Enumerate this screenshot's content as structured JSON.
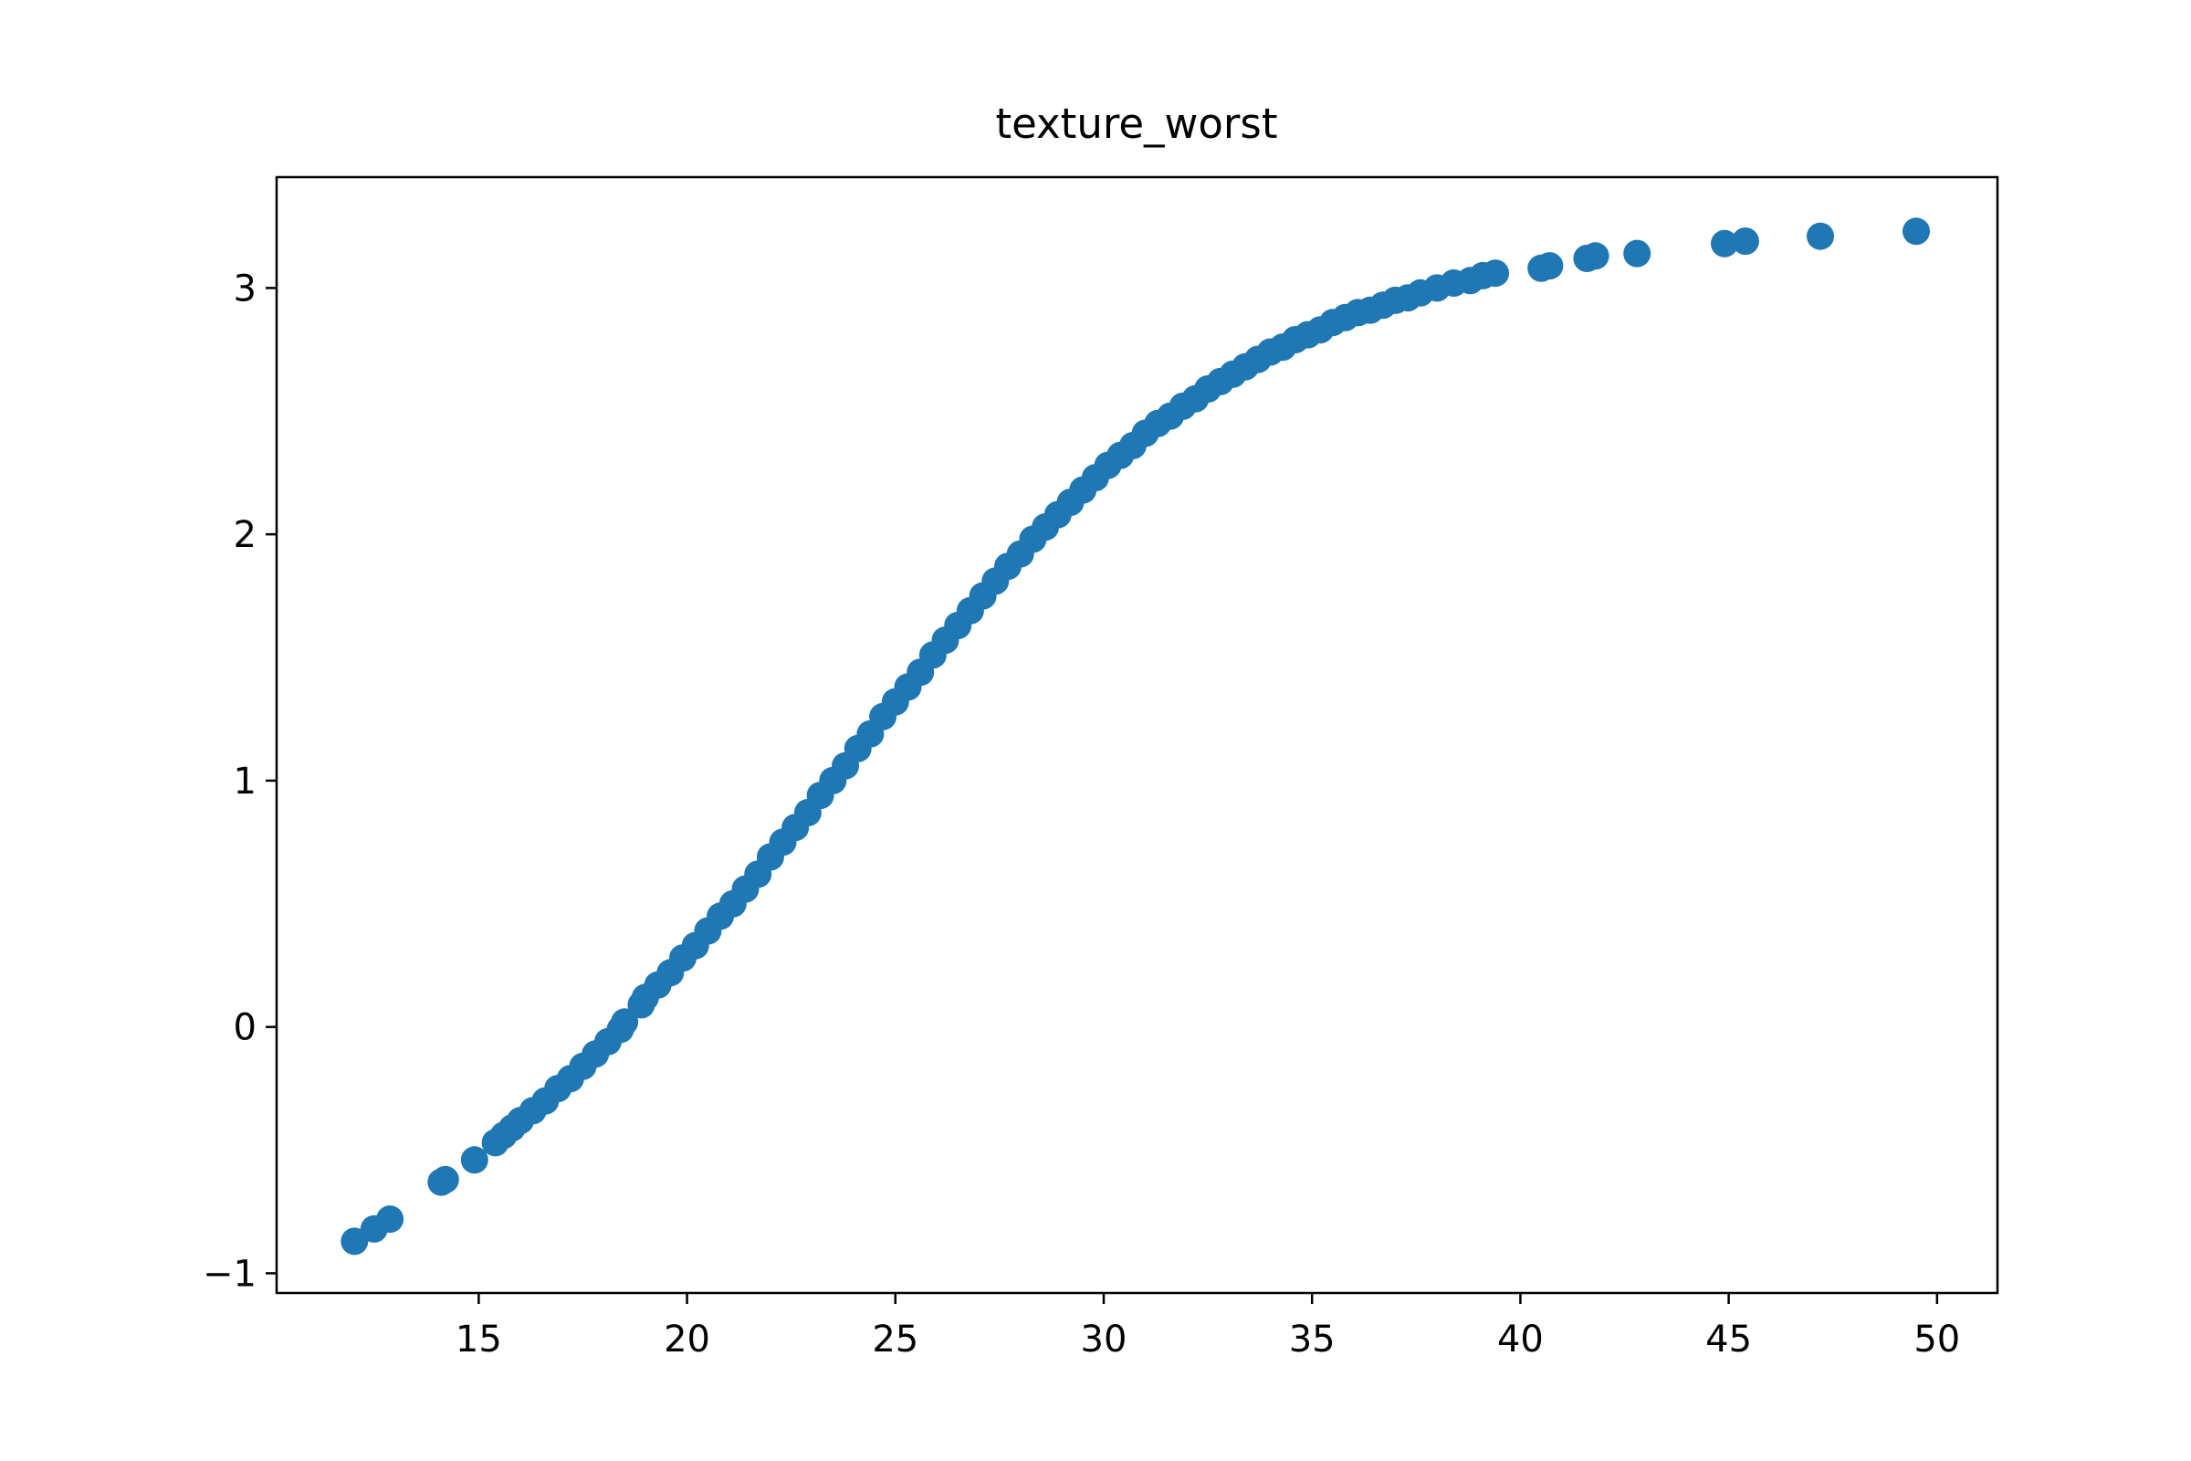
{
  "chart_data": {
    "type": "scatter",
    "title": "texture_worst",
    "xlabel": "",
    "ylabel": "",
    "xlim": [
      10.15,
      51.45
    ],
    "ylim": [
      -1.08,
      3.45
    ],
    "xticks": [
      15,
      20,
      25,
      30,
      35,
      40,
      45,
      50
    ],
    "yticks": [
      -1,
      0,
      1,
      2,
      3
    ],
    "xtick_labels": [
      "15",
      "20",
      "25",
      "30",
      "35",
      "40",
      "45",
      "50"
    ],
    "ytick_labels": [
      "−1",
      "0",
      "1",
      "2",
      "3"
    ],
    "grid": false,
    "legend": "none",
    "marker_color": "#1f77b4",
    "series": [
      {
        "x": [
          12.02,
          12.49,
          12.87,
          14.1,
          14.2,
          14.9,
          15.4,
          15.6,
          15.8,
          16.0,
          16.3,
          16.6,
          16.9,
          17.2,
          17.5,
          17.8,
          18.1,
          18.4,
          18.5,
          18.9,
          19.0,
          19.3,
          19.6,
          19.9,
          20.2,
          20.5,
          20.8,
          21.1,
          21.4,
          21.7,
          22.0,
          22.3,
          22.6,
          22.9,
          23.2,
          23.5,
          23.8,
          24.1,
          24.4,
          24.7,
          25.0,
          25.3,
          25.6,
          25.9,
          26.2,
          26.5,
          26.8,
          27.1,
          27.4,
          27.7,
          28.0,
          28.3,
          28.6,
          28.9,
          29.2,
          29.5,
          29.8,
          30.1,
          30.4,
          30.7,
          31.0,
          31.3,
          31.6,
          31.9,
          32.2,
          32.5,
          32.8,
          33.1,
          33.4,
          33.7,
          34.0,
          34.3,
          34.6,
          34.9,
          35.2,
          35.5,
          35.8,
          36.1,
          36.4,
          36.7,
          37.0,
          37.3,
          37.6,
          38.0,
          38.4,
          38.8,
          39.1,
          39.4,
          40.5,
          40.7,
          41.6,
          41.8,
          42.8,
          44.9,
          45.4,
          47.2,
          49.5
        ],
        "y": [
          -0.87,
          -0.82,
          -0.78,
          -0.63,
          -0.62,
          -0.54,
          -0.47,
          -0.44,
          -0.41,
          -0.38,
          -0.34,
          -0.3,
          -0.25,
          -0.21,
          -0.16,
          -0.11,
          -0.06,
          -0.01,
          0.02,
          0.09,
          0.12,
          0.17,
          0.22,
          0.28,
          0.33,
          0.39,
          0.45,
          0.5,
          0.56,
          0.62,
          0.69,
          0.75,
          0.81,
          0.87,
          0.94,
          1.0,
          1.06,
          1.13,
          1.19,
          1.26,
          1.32,
          1.38,
          1.44,
          1.51,
          1.57,
          1.63,
          1.69,
          1.75,
          1.81,
          1.87,
          1.92,
          1.98,
          2.03,
          2.08,
          2.13,
          2.18,
          2.23,
          2.28,
          2.32,
          2.36,
          2.41,
          2.45,
          2.48,
          2.52,
          2.55,
          2.59,
          2.62,
          2.65,
          2.68,
          2.71,
          2.74,
          2.76,
          2.79,
          2.81,
          2.83,
          2.86,
          2.88,
          2.9,
          2.91,
          2.93,
          2.95,
          2.96,
          2.98,
          3.0,
          3.02,
          3.03,
          3.05,
          3.06,
          3.08,
          3.09,
          3.12,
          3.13,
          3.14,
          3.18,
          3.19,
          3.21,
          3.23
        ]
      }
    ]
  }
}
